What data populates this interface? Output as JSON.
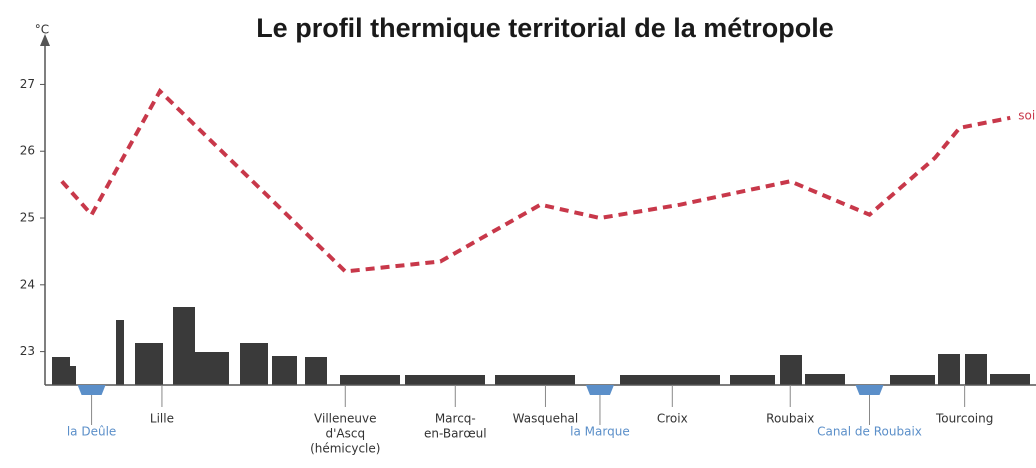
{
  "chart_data": {
    "type": "line",
    "title": "Le profil thermique territorial de la métropole",
    "y_unit": "°C",
    "xlim": [
      0,
      100
    ],
    "ylim": [
      22.5,
      27.8
    ],
    "yticks": [
      23,
      24,
      25,
      26,
      27
    ],
    "x": [
      1.7,
      4.7,
      11.6,
      30.3,
      39.9,
      50,
      56,
      64.1,
      75.2,
      83.2,
      89.8,
      92.3,
      97.4
    ],
    "series": [
      {
        "name": "soi",
        "color": "#c8384a",
        "values": [
          25.55,
          25.05,
          26.9,
          24.2,
          24.35,
          25.2,
          25.0,
          25.2,
          25.55,
          25.05,
          25.9,
          26.35,
          26.5
        ]
      }
    ],
    "places": [
      {
        "lines": [
          "Lille"
        ],
        "x": 11.8
      },
      {
        "lines": [
          "Villeneuve",
          "d'Ascq",
          "(hémicycle)"
        ],
        "x": 30.3
      },
      {
        "lines": [
          "Marcq-",
          "en-Barœul"
        ],
        "x": 41.4
      },
      {
        "lines": [
          "Wasquehal"
        ],
        "x": 50.5
      },
      {
        "lines": [
          "Croix"
        ],
        "x": 63.3
      },
      {
        "lines": [
          "Roubaix"
        ],
        "x": 75.2
      },
      {
        "lines": [
          "Tourcoing"
        ],
        "x": 92.8
      }
    ],
    "rivers": [
      {
        "label": "la Deûle",
        "x": 4.7
      },
      {
        "label": "la Marque",
        "x": 56
      },
      {
        "label": "Canal de Roubaix",
        "x": 83.2
      }
    ]
  }
}
